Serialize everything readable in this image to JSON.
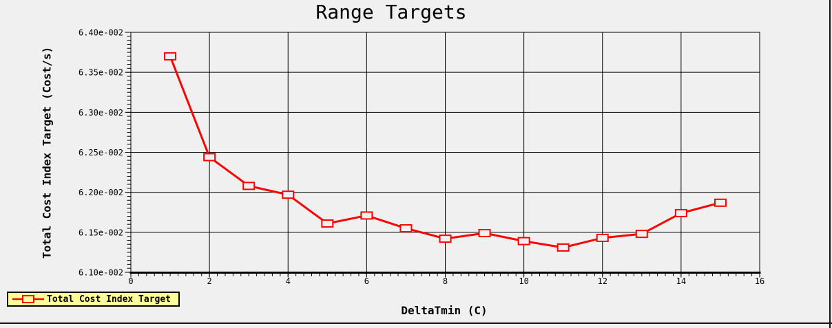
{
  "chart_data": {
    "type": "line",
    "title": "Range Targets",
    "xlabel": "DeltaTmin (C)",
    "ylabel": "Total Cost Index Target (Cost/s)",
    "x": [
      1,
      2,
      3,
      4,
      5,
      6,
      7,
      8,
      9,
      10,
      11,
      12,
      13,
      14,
      15
    ],
    "series": [
      {
        "name": "Total Cost Index Target",
        "values": [
          0.0637,
          0.06244,
          0.06208,
          0.06197,
          0.06161,
          0.06171,
          0.06155,
          0.06142,
          0.06149,
          0.06139,
          0.06131,
          0.06143,
          0.06148,
          0.06174,
          0.06187
        ]
      }
    ],
    "xlim": [
      0,
      16
    ],
    "ylim": [
      0.061,
      0.064
    ],
    "x_ticks": [
      0,
      2,
      4,
      6,
      8,
      10,
      12,
      14,
      16
    ],
    "x_minor_step": 0.2,
    "y_ticks": [
      {
        "value": 0.064,
        "label": "6.40e-002"
      },
      {
        "value": 0.0635,
        "label": "6.35e-002"
      },
      {
        "value": 0.063,
        "label": "6.30e-002"
      },
      {
        "value": 0.0625,
        "label": "6.25e-002"
      },
      {
        "value": 0.062,
        "label": "6.20e-002"
      },
      {
        "value": 0.0615,
        "label": "6.15e-002"
      },
      {
        "value": 0.061,
        "label": "6.10e-002"
      }
    ],
    "y_minor_step": 5e-05,
    "grid": true,
    "legend": {
      "label": "Total Cost Index Target",
      "position": "bottom-left"
    },
    "colors": {
      "line": "#ff0000",
      "legend_bg": "#ffff99",
      "background": "#f0f0f0",
      "axis": "#000000"
    }
  }
}
